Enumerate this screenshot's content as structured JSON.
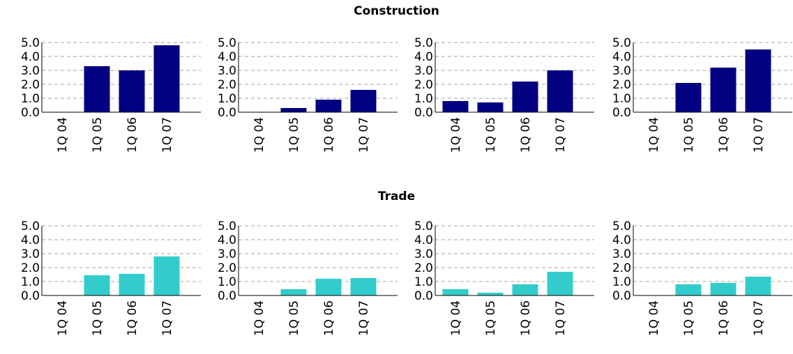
{
  "colors": {
    "construction": "#000080",
    "trade": "#33CCCC",
    "grid": "#a0a0a0",
    "axis": "#000000"
  },
  "groups": [
    {
      "title": "Construction",
      "color": "#000080"
    },
    {
      "title": "Trade",
      "color": "#33CCCC"
    }
  ],
  "chart_data": [
    {
      "type": "bar",
      "group": "Construction",
      "categories": [
        "1Q 04",
        "1Q 05",
        "1Q 06",
        "1Q 07"
      ],
      "values": [
        0.0,
        3.3,
        3.0,
        4.8
      ],
      "ylim": [
        0,
        5
      ],
      "yticks": [
        "0.0",
        "1.0",
        "2.0",
        "3.0",
        "4.0",
        "5.0"
      ],
      "grid": true
    },
    {
      "type": "bar",
      "group": "Construction",
      "categories": [
        "1Q 04",
        "1Q 05",
        "1Q 06",
        "1Q 07"
      ],
      "values": [
        0.0,
        0.3,
        0.9,
        1.6
      ],
      "ylim": [
        0,
        5
      ],
      "yticks": [
        "0.0",
        "1.0",
        "2.0",
        "3.0",
        "4.0",
        "5.0"
      ],
      "grid": true
    },
    {
      "type": "bar",
      "group": "Construction",
      "categories": [
        "1Q 04",
        "1Q 05",
        "1Q 06",
        "1Q 07"
      ],
      "values": [
        0.8,
        0.7,
        2.2,
        3.0
      ],
      "ylim": [
        0,
        5
      ],
      "yticks": [
        "0.0",
        "1.0",
        "2.0",
        "3.0",
        "4.0",
        "5.0"
      ],
      "grid": true
    },
    {
      "type": "bar",
      "group": "Construction",
      "categories": [
        "1Q 04",
        "1Q 05",
        "1Q 06",
        "1Q 07"
      ],
      "values": [
        0.0,
        2.1,
        3.2,
        4.5
      ],
      "ylim": [
        0,
        5
      ],
      "yticks": [
        "0.0",
        "1.0",
        "2.0",
        "3.0",
        "4.0",
        "5.0"
      ],
      "grid": true
    },
    {
      "type": "bar",
      "group": "Trade",
      "categories": [
        "1Q 04",
        "1Q 05",
        "1Q 06",
        "1Q 07"
      ],
      "values": [
        0.0,
        1.45,
        1.55,
        2.8
      ],
      "ylim": [
        0,
        5
      ],
      "yticks": [
        "0.0",
        "1.0",
        "2.0",
        "3.0",
        "4.0",
        "5.0"
      ],
      "grid": true
    },
    {
      "type": "bar",
      "group": "Trade",
      "categories": [
        "1Q 04",
        "1Q 05",
        "1Q 06",
        "1Q 07"
      ],
      "values": [
        0.0,
        0.45,
        1.2,
        1.25
      ],
      "ylim": [
        0,
        5
      ],
      "yticks": [
        "0.0",
        "1.0",
        "2.0",
        "3.0",
        "4.0",
        "5.0"
      ],
      "grid": true
    },
    {
      "type": "bar",
      "group": "Trade",
      "categories": [
        "1Q 04",
        "1Q 05",
        "1Q 06",
        "1Q 07"
      ],
      "values": [
        0.45,
        0.2,
        0.8,
        1.7
      ],
      "ylim": [
        0,
        5
      ],
      "yticks": [
        "0.0",
        "1.0",
        "2.0",
        "3.0",
        "4.0",
        "5.0"
      ],
      "grid": true
    },
    {
      "type": "bar",
      "group": "Trade",
      "categories": [
        "1Q 04",
        "1Q 05",
        "1Q 06",
        "1Q 07"
      ],
      "values": [
        0.0,
        0.8,
        0.9,
        1.35
      ],
      "ylim": [
        0,
        5
      ],
      "yticks": [
        "0.0",
        "1.0",
        "2.0",
        "3.0",
        "4.0",
        "5.0"
      ],
      "grid": true
    }
  ]
}
